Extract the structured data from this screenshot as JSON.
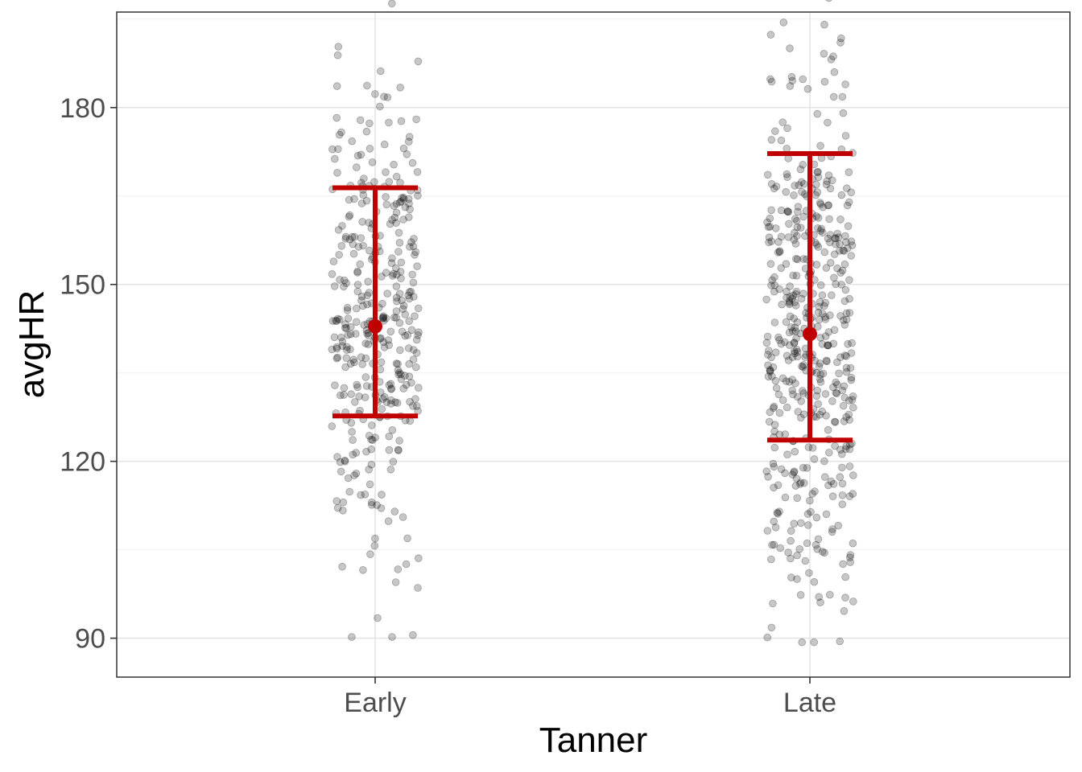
{
  "chart_data": {
    "type": "scatter",
    "subtype": "jitter-strip-with-mean-and-sd-errorbars",
    "title": "",
    "xlabel": "Tanner",
    "ylabel": "avgHR",
    "categories": [
      "Early",
      "Late"
    ],
    "ylim": [
      83.4,
      196.2
    ],
    "y_ticks": [
      90,
      120,
      150,
      180
    ],
    "y_minor_ticks": [
      105,
      135,
      165,
      195
    ],
    "grid": true,
    "legend": "none",
    "point_color": "#000000",
    "point_opacity": 0.22,
    "summary_color": "#C00000",
    "summary": [
      {
        "category": "Early",
        "mean": 142.9,
        "lower": 127.7,
        "upper": 166.4
      },
      {
        "category": "Late",
        "mean": 141.6,
        "lower": 123.6,
        "upper": 172.2
      }
    ],
    "points_summary": [
      {
        "category": "Early",
        "n_approx": 380,
        "min": 90.2,
        "max": 200.2
      },
      {
        "category": "Late",
        "n_approx": 500,
        "min": 89.3,
        "max": 202.1
      }
    ]
  }
}
